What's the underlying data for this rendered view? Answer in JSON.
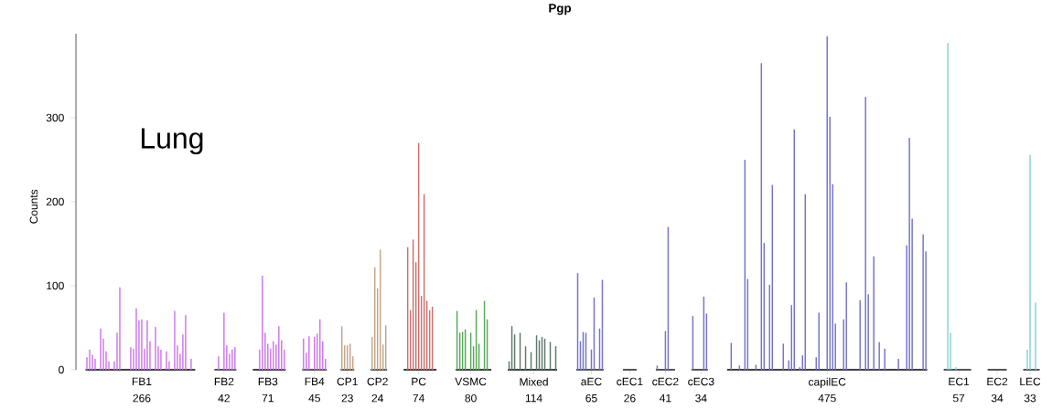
{
  "chart_data": {
    "type": "bar",
    "title": "Pgp",
    "ylabel": "Counts",
    "annotations": [
      "Lung",
      "266",
      "42",
      "71",
      "45",
      "23",
      "24",
      "74",
      "80",
      "114",
      "65",
      "26",
      "41",
      "34",
      "475",
      "57",
      "34",
      "33"
    ],
    "ylim": [
      0,
      400
    ],
    "yticks": [
      0,
      100,
      200,
      300
    ],
    "categories": [
      null,
      null,
      null,
      null,
      null,
      null,
      null,
      null,
      null,
      null,
      null,
      null,
      null,
      null,
      null,
      null,
      null,
      null,
      null,
      null,
      null,
      "FB1",
      null,
      null,
      null,
      null,
      null,
      null,
      null,
      null,
      null,
      null,
      null,
      null,
      null,
      null,
      null,
      null,
      null,
      null,
      null,
      null,
      null,
      null,
      null,
      null,
      null,
      null,
      null,
      null,
      null,
      "FB2",
      null,
      null,
      null,
      null,
      null,
      null,
      null,
      null,
      null,
      null,
      null,
      null,
      null,
      null,
      null,
      "FB3",
      null,
      null,
      null,
      null,
      null,
      null,
      null,
      null,
      null,
      null,
      null,
      null,
      null,
      null,
      null,
      null,
      "FB4",
      null,
      null,
      null,
      null,
      null,
      null,
      null,
      null,
      null,
      null,
      null,
      "CP1",
      null,
      null,
      null,
      null,
      null,
      null,
      null,
      null,
      null,
      null,
      "CP2",
      null,
      null,
      null,
      null,
      null,
      null,
      null,
      null,
      null,
      null,
      null,
      null,
      null,
      null,
      "PC",
      null,
      null,
      null,
      null,
      null,
      null,
      null,
      null,
      null,
      null,
      null,
      null,
      null,
      null,
      null,
      null,
      null,
      null,
      "VSMC",
      null,
      null,
      null,
      null,
      null,
      null,
      null,
      null,
      null,
      null,
      null,
      null,
      null,
      null,
      null,
      null,
      null,
      null,
      null,
      null,
      null,
      null,
      "Mixed",
      null,
      null,
      null,
      null,
      null,
      null,
      null,
      null,
      null,
      null,
      null,
      null,
      null,
      null,
      null,
      null,
      null,
      null,
      null,
      null,
      "aEC",
      null,
      null,
      null,
      null,
      null,
      null,
      null,
      null,
      null,
      null,
      null,
      null,
      null,
      "cEC1",
      null,
      null,
      null,
      null,
      null,
      null,
      null,
      null,
      null,
      null,
      null,
      null,
      "cEC2",
      null,
      null,
      null,
      null,
      null,
      null,
      null,
      null,
      null,
      null,
      null,
      null,
      "cEC3",
      null,
      null,
      null,
      null,
      null,
      null,
      null,
      null,
      null,
      null,
      null,
      null,
      null,
      null,
      null,
      null,
      null,
      null,
      null,
      null,
      null,
      null,
      null,
      null,
      null,
      null,
      null,
      null,
      null,
      null,
      null,
      null,
      null,
      null,
      null,
      null,
      null,
      null,
      null,
      null,
      null,
      null,
      null,
      null,
      null,
      "capilEC",
      null,
      null,
      null,
      null,
      null,
      null,
      null,
      null,
      null,
      null,
      null,
      null,
      null,
      null,
      null,
      null,
      null,
      null,
      null,
      null,
      null,
      null,
      null,
      null,
      null,
      null,
      null,
      null,
      null,
      null,
      null,
      null,
      null,
      null,
      null,
      null,
      null,
      null,
      null,
      null,
      null,
      null,
      null,
      null,
      null,
      null,
      null,
      "EC1",
      null,
      null,
      null,
      null,
      null,
      null,
      null,
      null,
      null,
      null,
      null,
      null,
      null,
      "EC2",
      null,
      null,
      null,
      null,
      null,
      null,
      null,
      null,
      null,
      null,
      null,
      "LEC",
      null,
      null,
      null
    ],
    "values": [
      null,
      15,
      24,
      18,
      13,
      0,
      49,
      37,
      22,
      10,
      0,
      10,
      44,
      98,
      0,
      0,
      0,
      27,
      25,
      73,
      59,
      60,
      25,
      59,
      34,
      0,
      51,
      28,
      24,
      0,
      22,
      10,
      0,
      70,
      29,
      19,
      42,
      65,
      0,
      13,
      0,
      null,
      null,
      null,
      null,
      null,
      null,
      null,
      0,
      16,
      0,
      68,
      29,
      19,
      24,
      27,
      null,
      null,
      null,
      null,
      null,
      null,
      0,
      0,
      24,
      112,
      44,
      31,
      25,
      34,
      30,
      52,
      35,
      24,
      null,
      null,
      null,
      null,
      null,
      null,
      37,
      20,
      40,
      0,
      39,
      43,
      60,
      34,
      13,
      null,
      null,
      null,
      null,
      null,
      52,
      29,
      29,
      31,
      16,
      null,
      null,
      null,
      null,
      null,
      null,
      39,
      122,
      97,
      143,
      30,
      53,
      null,
      null,
      null,
      null,
      null,
      null,
      0,
      146,
      71,
      155,
      128,
      270,
      88,
      209,
      82,
      71,
      75,
      0,
      null,
      null,
      null,
      null,
      null,
      null,
      null,
      70,
      44,
      45,
      48,
      0,
      44,
      28,
      71,
      31,
      0,
      82,
      60,
      0,
      null,
      null,
      null,
      null,
      null,
      null,
      10,
      52,
      42,
      0,
      44,
      0,
      28,
      0,
      21,
      0,
      41,
      35,
      39,
      37,
      0,
      33,
      0,
      28,
      null,
      null,
      null,
      null,
      null,
      null,
      null,
      115,
      34,
      45,
      44,
      0,
      24,
      86,
      0,
      49,
      107,
      null,
      null,
      null,
      null,
      null,
      null,
      null,
      0,
      0,
      0,
      0,
      0,
      null,
      null,
      null,
      null,
      null,
      null,
      null,
      5,
      0,
      0,
      46,
      170,
      0,
      0,
      null,
      null,
      null,
      null,
      null,
      null,
      64,
      0,
      0,
      0,
      87,
      67,
      null,
      null,
      null,
      null,
      null,
      null,
      null,
      0,
      32,
      0,
      0,
      5,
      0,
      250,
      108,
      0,
      0,
      6,
      0,
      365,
      151,
      0,
      101,
      220,
      0,
      0,
      0,
      31,
      0,
      11,
      77,
      286,
      0,
      3,
      17,
      209,
      0,
      0,
      0,
      15,
      68,
      0,
      0,
      397,
      301,
      221,
      55,
      0,
      0,
      60,
      104,
      0,
      0,
      0,
      0,
      83,
      0,
      325,
      90,
      0,
      135,
      0,
      33,
      0,
      25,
      0,
      0,
      0,
      0,
      13,
      0,
      0,
      148,
      276,
      180,
      0,
      0,
      0,
      161,
      141,
      null,
      null,
      null,
      null,
      null,
      null,
      0,
      389,
      44,
      0,
      3,
      0,
      0,
      0,
      0,
      0,
      null,
      null,
      null,
      null,
      null,
      null,
      0,
      0,
      0,
      0,
      0,
      0,
      0,
      null,
      null,
      null,
      null,
      null,
      null,
      0,
      24,
      256,
      0,
      80,
      0
    ],
    "colors": [
      "#cc77ee",
      "#cc77ee",
      "#cc77ee",
      "#cc77ee",
      "#cc77ee",
      "#cc77ee",
      "#cc77ee",
      "#cc77ee",
      "#cc77ee",
      "#cc77ee",
      "#cc77ee",
      "#cc77ee",
      "#cc77ee",
      "#cc77ee",
      "#cc77ee",
      "#cc77ee",
      "#cc77ee",
      "#cc77ee",
      "#cc77ee",
      "#cc77ee",
      "#cc77ee",
      "#cc77ee",
      "#cc77ee",
      "#cc77ee",
      "#cc77ee",
      "#cc77ee",
      "#cc77ee",
      "#cc77ee",
      "#cc77ee",
      "#cc77ee",
      "#cc77ee",
      "#cc77ee",
      "#cc77ee",
      "#cc77ee",
      "#cc77ee",
      "#cc77ee",
      "#cc77ee",
      "#cc77ee",
      "#cc77ee",
      "#cc77ee",
      "#cc77ee",
      "#cc77ee",
      "#cc77ee",
      "#cc77ee",
      "#cc77ee",
      "#cc77ee",
      "#cc77ee",
      "#cc77ee",
      "#cc77ee",
      "#cc77ee",
      "#cc77ee",
      "#cc77ee",
      "#cc77ee",
      "#cc77ee",
      "#cc77ee",
      "#cc77ee",
      "#cc77ee",
      "#cc77ee",
      "#cc77ee",
      "#cc77ee",
      "#cc77ee",
      "#cc77ee",
      "#cc77ee",
      "#cc77ee",
      "#cc77ee",
      "#cc77ee",
      "#cc77ee",
      "#cc77ee",
      "#cc77ee",
      "#cc77ee",
      "#cc77ee",
      "#cc77ee",
      "#cc77ee",
      "#cc77ee",
      "#cc77ee",
      "#cc77ee",
      "#cc77ee",
      "#cc77ee",
      "#cc77ee",
      "#cc77ee",
      "#cc77ee",
      "#cc77ee",
      "#cc77ee",
      "#cc77ee",
      "#cc77ee",
      "#cc77ee",
      "#cc77ee",
      "#cc77ee",
      "#cc77ee",
      "#c4a688",
      "#c4a688",
      "#c4a688",
      "#c4a688",
      "#c4a688",
      "#c4a688",
      "#c4a688",
      "#c4a688",
      "#c4a688",
      "#c4a688",
      "#c4a688",
      "#c4a688",
      "#c4a688",
      "#c4a688",
      "#c4a688",
      "#c4a688",
      "#c4a688",
      "#c4a688",
      "#c4a688",
      "#c4a688",
      "#c4a688",
      "#c4a688",
      "#cc7070",
      "#cc7070",
      "#cc7070",
      "#cc7070",
      "#cc7070",
      "#cc7070",
      "#cc7070",
      "#cc7070",
      "#cc7070",
      "#cc7070",
      "#cc7070",
      "#cc7070",
      "#cc7070",
      "#cc7070",
      "#cc7070",
      "#cc7070",
      "#cc7070",
      "#cc7070",
      "#5aa85a",
      "#5aa85a",
      "#5aa85a",
      "#5aa85a",
      "#5aa85a",
      "#5aa85a",
      "#5aa85a",
      "#5aa85a",
      "#5aa85a",
      "#5aa85a",
      "#5aa85a",
      "#5aa85a",
      "#5aa85a",
      "#5aa85a",
      "#5aa85a",
      "#5aa85a",
      "#5aa85a",
      "#5aa85a",
      "#5aa85a",
      "#5aa85a",
      "#5f7a6c",
      "#5f7a6c",
      "#5f7a6c",
      "#5f7a6c",
      "#5f7a6c",
      "#5f7a6c",
      "#5f7a6c",
      "#5f7a6c",
      "#5f7a6c",
      "#5f7a6c",
      "#5f7a6c",
      "#5f7a6c",
      "#5f7a6c",
      "#5f7a6c",
      "#5f7a6c",
      "#5f7a6c",
      "#5f7a6c",
      "#5f7a6c",
      "#5f7a6c",
      "#5f7a6c",
      "#5f7a6c",
      "#5f7a6c",
      "#5f7a6c",
      "#5f7a6c",
      "#7474cc",
      "#7474cc",
      "#7474cc",
      "#7474cc",
      "#7474cc",
      "#7474cc",
      "#7474cc",
      "#7474cc",
      "#7474cc",
      "#7474cc",
      "#7474cc",
      "#7474cc",
      "#7474cc",
      "#7474cc",
      "#7474cc",
      "#7474cc",
      "#7474cc",
      "#7474cc",
      "#7474cc",
      "#7474cc",
      "#7474cc",
      "#7474cc",
      "#7474cc",
      "#7474cc",
      "#7474cc",
      "#7474cc",
      "#7474cc",
      "#7474cc",
      "#7474cc",
      "#7474cc",
      "#7474cc",
      "#7474cc",
      "#7474cc",
      "#7474cc",
      "#7474cc",
      "#7474cc",
      "#7474cc",
      "#7474cc",
      "#7474cc",
      "#7474cc",
      "#7474cc",
      "#7474cc",
      "#7474cc",
      "#7474cc",
      "#7474cc",
      "#7474cc",
      "#7474cc",
      "#7474cc",
      "#7474cc",
      "#7474cc",
      "#7474cc",
      "#7474cc",
      "#7474cc",
      "#7474cc",
      "#7474cc",
      "#7474cc",
      "#7474cc",
      "#7474cc",
      "#7474cc",
      "#7474cc",
      "#7474cc",
      "#7474cc",
      "#7474cc",
      "#7474cc",
      "#7474cc",
      "#7474cc",
      "#7474cc",
      "#7474cc",
      "#7474cc",
      "#7474cc",
      "#7474cc",
      "#7474cc",
      "#7474cc",
      "#7474cc",
      "#7474cc",
      "#7474cc",
      "#7474cc",
      "#7474cc",
      "#7474cc",
      "#7474cc",
      "#7474cc",
      "#7474cc",
      "#7474cc",
      "#7474cc",
      "#7474cc",
      "#7474cc",
      "#7474cc",
      "#7474cc",
      "#7474cc",
      "#7474cc",
      "#7474cc",
      "#7474cc",
      "#7474cc",
      "#7474cc",
      "#7474cc",
      "#7474cc",
      "#7474cc",
      "#7474cc",
      "#7474cc",
      "#7474cc",
      "#7474cc",
      "#7474cc",
      "#7474cc",
      "#7474cc",
      "#7474cc",
      "#7474cc",
      "#7474cc",
      "#7474cc",
      "#7474cc",
      "#7474cc",
      "#7474cc",
      "#7474cc",
      "#7474cc",
      "#7474cc",
      "#7474cc",
      "#7474cc",
      "#7474cc",
      "#7474cc",
      "#7474cc",
      "#7474cc",
      "#7474cc",
      "#7474cc",
      "#7474cc",
      "#7474cc",
      "#7474cc",
      "#7474cc",
      "#7474cc",
      "#7474cc",
      "#7474cc",
      "#7474cc",
      "#7474cc",
      "#7474cc",
      "#7474cc",
      "#7474cc",
      "#7474cc",
      "#88d2d2",
      "#88d2d2",
      "#88d2d2",
      "#88d2d2",
      "#88d2d2",
      "#88d2d2",
      "#88d2d2",
      "#88d2d2",
      "#88d2d2",
      "#88d2d2",
      "#88d2d2",
      "#88d2d2",
      "#88d2d2",
      "#88d2d2",
      "#88d2d2",
      "#88d2d2",
      "#88d2d2",
      "#88d2d2",
      "#88d2d2",
      "#88d2d2",
      "#88d2d2",
      "#88d2d2",
      "#88d2d2",
      "#88d2d2",
      "#88d2d2",
      "#88d2d2",
      "#88d2d2",
      "#88d2d2",
      "#88d2d2",
      "#88d2d2",
      "#88d2d2",
      "#88d2d2",
      "#88d2d2",
      "#88d2d2",
      "#88d2d2",
      "#88d2d2",
      "#88d2d2",
      "#88d2d2",
      "#88d2d2",
      "#88d2d2",
      "#88d2d2"
    ]
  }
}
